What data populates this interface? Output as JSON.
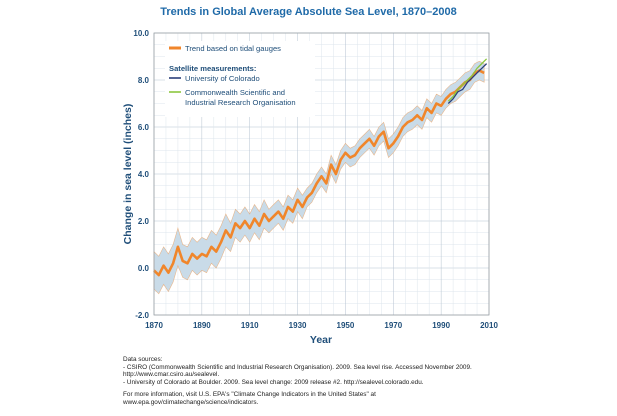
{
  "chart_data": {
    "type": "line",
    "title": "Trends in Global Average Absolute Sea Level, 1870–2008",
    "xlabel": "Year",
    "ylabel": "Change in sea level (inches)",
    "xlim": [
      1870,
      2010
    ],
    "ylim": [
      -2.0,
      10.0
    ],
    "xticks": [
      "1870",
      "1890",
      "1910",
      "1930",
      "1950",
      "1970",
      "1990",
      "2010"
    ],
    "yticks": [
      "-2.0",
      "0.0",
      "2.0",
      "4.0",
      "6.0",
      "8.0",
      "10.0"
    ],
    "grid": true,
    "legend_placement": "top-left",
    "legend": {
      "entries": [
        {
          "label": "Trend based on tidal gauges",
          "color": "#f0862b",
          "role": "series"
        },
        {
          "label": "Satellite measurements:",
          "color": "",
          "role": "header"
        },
        {
          "label": "University of Colorado",
          "color": "#2b3f7a",
          "role": "series"
        },
        {
          "label": "Commonwealth Scientific and",
          "color": "#8cc63f",
          "role": "series"
        },
        {
          "label": "Industrial Research Organisation",
          "color": "",
          "role": "continuation"
        }
      ]
    },
    "series": [
      {
        "name": "Trend based on tidal gauges",
        "color": "#f0862b",
        "band_color": "#c9dbe8",
        "x": [
          1870,
          1872,
          1874,
          1876,
          1878,
          1880,
          1882,
          1884,
          1886,
          1888,
          1890,
          1892,
          1894,
          1896,
          1898,
          1900,
          1902,
          1904,
          1906,
          1908,
          1910,
          1912,
          1914,
          1916,
          1918,
          1920,
          1922,
          1924,
          1926,
          1928,
          1930,
          1932,
          1934,
          1936,
          1938,
          1940,
          1942,
          1944,
          1946,
          1948,
          1950,
          1952,
          1954,
          1956,
          1958,
          1960,
          1962,
          1964,
          1966,
          1968,
          1970,
          1972,
          1974,
          1976,
          1978,
          1980,
          1982,
          1984,
          1986,
          1988,
          1990,
          1992,
          1994,
          1996,
          1998,
          2000,
          2002,
          2004,
          2006,
          2008
        ],
        "y": [
          -0.1,
          -0.3,
          0.1,
          -0.2,
          0.2,
          0.9,
          0.3,
          0.2,
          0.6,
          0.4,
          0.6,
          0.5,
          0.9,
          0.7,
          1.1,
          1.6,
          1.3,
          1.9,
          1.7,
          2.0,
          1.7,
          2.1,
          1.8,
          2.3,
          2.0,
          2.2,
          2.4,
          2.1,
          2.6,
          2.4,
          2.9,
          2.6,
          3.0,
          3.2,
          3.6,
          3.9,
          3.6,
          4.4,
          4.0,
          4.6,
          4.9,
          4.7,
          4.8,
          5.1,
          5.3,
          5.5,
          5.2,
          5.6,
          5.8,
          5.1,
          5.3,
          5.6,
          6.0,
          6.2,
          6.3,
          6.5,
          6.3,
          6.8,
          6.6,
          7.0,
          6.9,
          7.2,
          7.4,
          7.5,
          7.7,
          7.9,
          8.0,
          8.3,
          8.4,
          8.3
        ],
        "lower": [
          -0.9,
          -1.1,
          -0.7,
          -1.0,
          -0.6,
          0.1,
          -0.4,
          -0.5,
          -0.1,
          -0.3,
          -0.1,
          -0.2,
          0.2,
          0.0,
          0.4,
          0.9,
          0.7,
          1.3,
          1.1,
          1.4,
          1.1,
          1.5,
          1.2,
          1.7,
          1.5,
          1.7,
          1.9,
          1.6,
          2.1,
          1.9,
          2.4,
          2.1,
          2.6,
          2.8,
          3.2,
          3.5,
          3.2,
          4.0,
          3.6,
          4.2,
          4.5,
          4.3,
          4.4,
          4.7,
          4.9,
          5.1,
          4.8,
          5.2,
          5.4,
          4.7,
          4.9,
          5.2,
          5.6,
          5.8,
          5.9,
          6.1,
          5.9,
          6.4,
          6.2,
          6.6,
          6.5,
          6.8,
          7.0,
          7.1,
          7.3,
          7.5,
          7.6,
          7.9,
          8.0,
          7.9
        ],
        "upper": [
          0.7,
          0.5,
          0.9,
          0.6,
          1.0,
          1.7,
          1.0,
          0.9,
          1.3,
          1.1,
          1.3,
          1.2,
          1.6,
          1.4,
          1.8,
          2.3,
          1.9,
          2.5,
          2.3,
          2.6,
          2.3,
          2.7,
          2.4,
          2.9,
          2.5,
          2.7,
          2.9,
          2.6,
          3.1,
          2.9,
          3.4,
          3.1,
          3.4,
          3.6,
          4.0,
          4.3,
          4.0,
          4.8,
          4.4,
          5.0,
          5.3,
          5.1,
          5.2,
          5.5,
          5.7,
          5.9,
          5.6,
          6.0,
          6.2,
          5.5,
          5.7,
          6.0,
          6.4,
          6.6,
          6.7,
          6.9,
          6.7,
          7.2,
          7.0,
          7.4,
          7.3,
          7.6,
          7.8,
          7.9,
          8.1,
          8.3,
          8.4,
          8.7,
          8.8,
          8.7
        ]
      },
      {
        "name": "University of Colorado",
        "color": "#2b3f7a",
        "x": [
          1993,
          1995,
          1997,
          1999,
          2001,
          2003,
          2005,
          2007,
          2009
        ],
        "y": [
          7.0,
          7.2,
          7.5,
          7.6,
          7.9,
          8.1,
          8.3,
          8.5,
          8.7
        ]
      },
      {
        "name": "Commonwealth Scientific and Industrial Research Organisation",
        "color": "#8cc63f",
        "x": [
          1993,
          1995,
          1997,
          1999,
          2001,
          2003,
          2005,
          2007,
          2009
        ],
        "y": [
          7.1,
          7.3,
          7.6,
          7.8,
          8.0,
          8.2,
          8.5,
          8.7,
          8.9
        ]
      }
    ]
  },
  "footnotes": [
    "Data sources:",
    "- CSIRO (Commonwealth Scientific and Industrial Research Organisation). 2009. Sea level rise. Accessed November 2009.",
    "http://www.cmar.csiro.au/sealevel.",
    "- University of Colorado at Boulder. 2009. Sea level change: 2009 release #2. http://sealevel.colorado.edu.",
    "",
    "For more information, visit U.S. EPA's \"Climate Change Indicators in the United States\" at",
    "www.epa.gov/climatechange/science/indicators."
  ]
}
